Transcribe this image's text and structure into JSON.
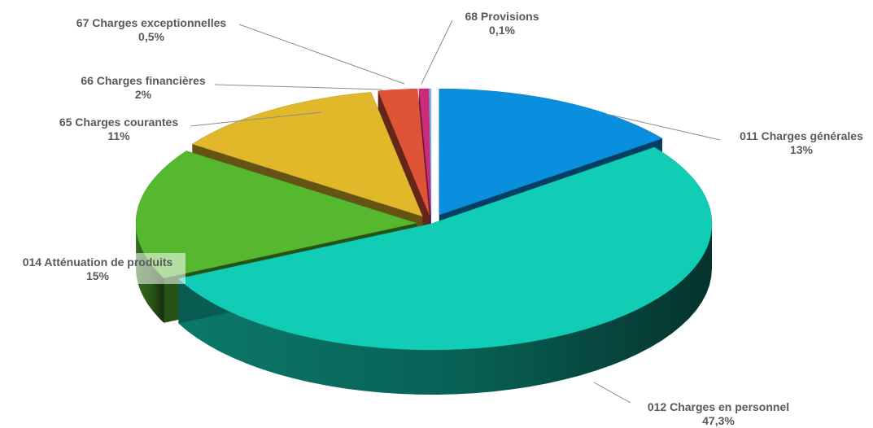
{
  "chart_data": {
    "type": "pie",
    "style": "3d-exploded",
    "slices": [
      {
        "name": "011 Charges générales",
        "pct_label": "13%",
        "value": 13,
        "color": "#0a8fde"
      },
      {
        "name": "012 Charges en personnel",
        "pct_label": "47,3%",
        "value": 47.3,
        "color": "#12cdb5"
      },
      {
        "name": "014 Atténuation de produits",
        "pct_label": "15%",
        "value": 15,
        "color": "#55b82f"
      },
      {
        "name": "65 Charges courantes",
        "pct_label": "11%",
        "value": 11,
        "color": "#e0b82a"
      },
      {
        "name": "66 Charges financières",
        "pct_label": "2%",
        "value": 2,
        "color": "#df5437"
      },
      {
        "name": "67 Charges exceptionnelles",
        "pct_label": "0,5%",
        "value": 0.5,
        "color": "#cc2b7d"
      },
      {
        "name": "68 Provisions",
        "pct_label": "0,1%",
        "value": 0.1,
        "color": "#7fbaf5"
      }
    ],
    "title": "",
    "legend": "none",
    "data_labels": "outside with leader lines"
  }
}
